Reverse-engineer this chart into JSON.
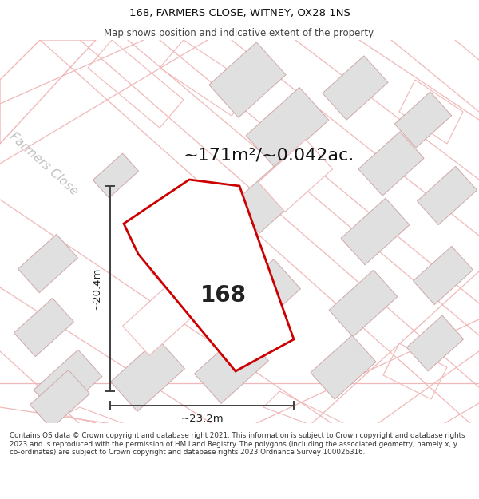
{
  "title_line1": "168, FARMERS CLOSE, WITNEY, OX28 1NS",
  "title_line2": "Map shows position and indicative extent of the property.",
  "area_text": "~171m²/~0.042ac.",
  "dim_vertical": "~20.4m",
  "dim_horizontal": "~23.2m",
  "house_number": "168",
  "road_label": "Farmers Close",
  "footer": "Contains OS data © Crown copyright and database right 2021. This information is subject to Crown copyright and database rights 2023 and is reproduced with the permission of HM Land Registry. The polygons (including the associated geometry, namely x, y co-ordinates) are subject to Crown copyright and database rights 2023 Ordnance Survey 100026316.",
  "bg_color": "#ffffff",
  "building_color": "#e0e0e0",
  "building_edge": "#d0a8a8",
  "road_color": "#f0b8b8",
  "highlight_color": "#cc0000",
  "dim_color": "#404040",
  "text_color": "#111111",
  "road_label_color": "#c0c0c0"
}
